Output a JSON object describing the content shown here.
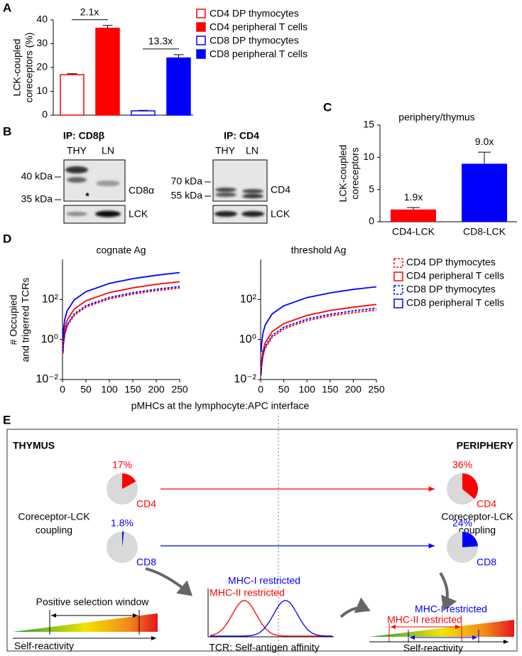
{
  "panel_labels": [
    "A",
    "B",
    "C",
    "D",
    "E"
  ],
  "chart_data": [
    {
      "type": "bar",
      "ylabel": [
        "LCK-coupled",
        "coreceptors (%)"
      ],
      "ylim": [
        0,
        40
      ],
      "yticks": [
        0,
        10,
        20,
        30,
        40
      ],
      "series": [
        {
          "name": "CD4 DP thymocytes",
          "color": "#ff0000",
          "filled": false,
          "values": [
            17
          ],
          "errors": [
            0.4
          ]
        },
        {
          "name": "CD4 peripheral T cells",
          "color": "#ff0000",
          "filled": true,
          "values": [
            36.5
          ],
          "errors": [
            1.2
          ]
        },
        {
          "name": "CD8 DP thymocytes",
          "color": "#0000ff",
          "filled": false,
          "values": [
            1.8
          ],
          "errors": [
            0.2
          ]
        },
        {
          "name": "CD8 peripheral T cells",
          "color": "#0000ff",
          "filled": true,
          "values": [
            24
          ],
          "errors": [
            1.4
          ]
        }
      ],
      "annotations": [
        "2.1x",
        "13.3x"
      ]
    },
    {
      "type": "bar",
      "title": "periphery/thymus",
      "ylabel": [
        "LCK-coupled",
        "coreceptors"
      ],
      "categories": [
        "CD4-LCK",
        "CD8-LCK"
      ],
      "values": [
        1.9,
        9.0
      ],
      "errors": [
        0.3,
        1.8
      ],
      "value_labels": [
        "1.9x",
        "9.0x"
      ],
      "colors": [
        "#ff0000",
        "#0000ff"
      ],
      "ylim": [
        0,
        15
      ],
      "yticks": [
        0,
        5,
        10,
        15
      ]
    },
    {
      "type": "line",
      "title": "cognate Ag",
      "ylabel": [
        "# Occupied",
        "and trigerred TCRs"
      ],
      "xlabel": "pMHCs at the lymphocyte:APC interface",
      "x": [
        1,
        2,
        5,
        10,
        25,
        50,
        100,
        150,
        200,
        250
      ],
      "xlim": [
        0,
        250
      ],
      "xticks": [
        0,
        50,
        100,
        150,
        200,
        250
      ],
      "ylim": [
        0.01,
        10000
      ],
      "yticks": [
        {
          "value": 0.01,
          "label": "10⁻²"
        },
        {
          "value": 1,
          "label": "10⁰"
        },
        {
          "value": 100,
          "label": "10²"
        }
      ],
      "log_y": true,
      "series": [
        {
          "color": "#ff0000",
          "dashed": true,
          "values": [
            0.2,
            0.53,
            1.8,
            4.7,
            16,
            42,
            107,
            185,
            275,
            375
          ]
        },
        {
          "color": "#ff0000",
          "dashed": false,
          "values": [
            0.42,
            1.1,
            3.7,
            9.6,
            33,
            86,
            220,
            380,
            570,
            770
          ]
        },
        {
          "color": "#0000ff",
          "dashed": true,
          "values": [
            0.24,
            0.62,
            2.1,
            5.5,
            19,
            49,
            126,
            218,
            324,
            440
          ]
        },
        {
          "color": "#0000ff",
          "dashed": false,
          "values": [
            1.2,
            3.1,
            10.7,
            27.5,
            95,
            245,
            630,
            1090,
            1620,
            2200
          ]
        }
      ]
    },
    {
      "type": "line",
      "title": "threshold Ag",
      "x": [
        1,
        2,
        5,
        10,
        25,
        50,
        100,
        150,
        200,
        250
      ],
      "xlim": [
        0,
        250
      ],
      "xticks": [
        0,
        50,
        100,
        150,
        200,
        250
      ],
      "ylim": [
        0.01,
        10000
      ],
      "yticks": [
        {
          "value": 0.01,
          "label": "10⁻²"
        },
        {
          "value": 1,
          "label": "10⁰"
        },
        {
          "value": 100,
          "label": "10²"
        }
      ],
      "log_y": true,
      "legend": "right",
      "series": [
        {
          "name": "CD4 DP thymocytes",
          "color": "#ff0000",
          "dashed": true,
          "values": [
            0.016,
            0.042,
            0.15,
            0.38,
            1.3,
            3.4,
            8.7,
            15,
            22,
            30
          ]
        },
        {
          "name": "CD4 peripheral T cells",
          "color": "#ff0000",
          "dashed": false,
          "values": [
            0.03,
            0.08,
            0.27,
            0.7,
            2.5,
            6.2,
            16,
            28,
            41,
            56
          ]
        },
        {
          "name": "CD8 DP thymocytes",
          "color": "#0000ff",
          "dashed": true,
          "values": [
            0.02,
            0.05,
            0.18,
            0.46,
            1.6,
            4.1,
            10.5,
            18,
            27,
            37
          ]
        },
        {
          "name": "CD8 peripheral T cells",
          "color": "#0000ff",
          "dashed": false,
          "values": [
            0.23,
            0.6,
            2.1,
            5.4,
            19,
            48,
            124,
            213,
            317,
            430
          ]
        }
      ]
    }
  ],
  "blot": {
    "left": {
      "ip": "IP: CD8β",
      "lanes": [
        "THY",
        "LN"
      ],
      "markers": [
        "40 kDa",
        "35 kDa"
      ],
      "target": "CD8α",
      "loading": "LCK",
      "asterisk": "*"
    },
    "right": {
      "ip": "IP: CD4",
      "lanes": [
        "THY",
        "LN"
      ],
      "markers": [
        "70 kDa",
        "55 kDa"
      ],
      "target": "CD4",
      "loading": "LCK"
    }
  },
  "diagram": {
    "thymus": "THYMUS",
    "periphery": "PERIPHERY",
    "coupling_left": [
      "Coreceptor-LCK",
      "coupling"
    ],
    "coupling_right": [
      "Coreceptor-LCK",
      "coupling"
    ],
    "pies": [
      {
        "value": 17,
        "value_label": "17%",
        "label": "CD4",
        "color": "#ff0000"
      },
      {
        "value": 1.8,
        "value_label": "1.8%",
        "label": "CD8",
        "color": "#0000ff"
      },
      {
        "value": 36,
        "value_label": "36%",
        "label": "CD4",
        "color": "#ff0000"
      },
      {
        "value": 24,
        "value_label": "24%",
        "label": "CD8",
        "color": "#0000ff"
      }
    ],
    "positive_selection": "Positive selection window",
    "self_reactivity_left": "Self-reactivity",
    "self_reactivity_right": "Self-reactivity",
    "mhc1_mid": "MHC-I restricted",
    "mhc2_mid": "MHC-II restricted",
    "mhc1_right": "MHC-I restricted",
    "mhc2_right": "MHC-II restricted",
    "affinity_axis": "TCR: Self-antigen affinity"
  }
}
